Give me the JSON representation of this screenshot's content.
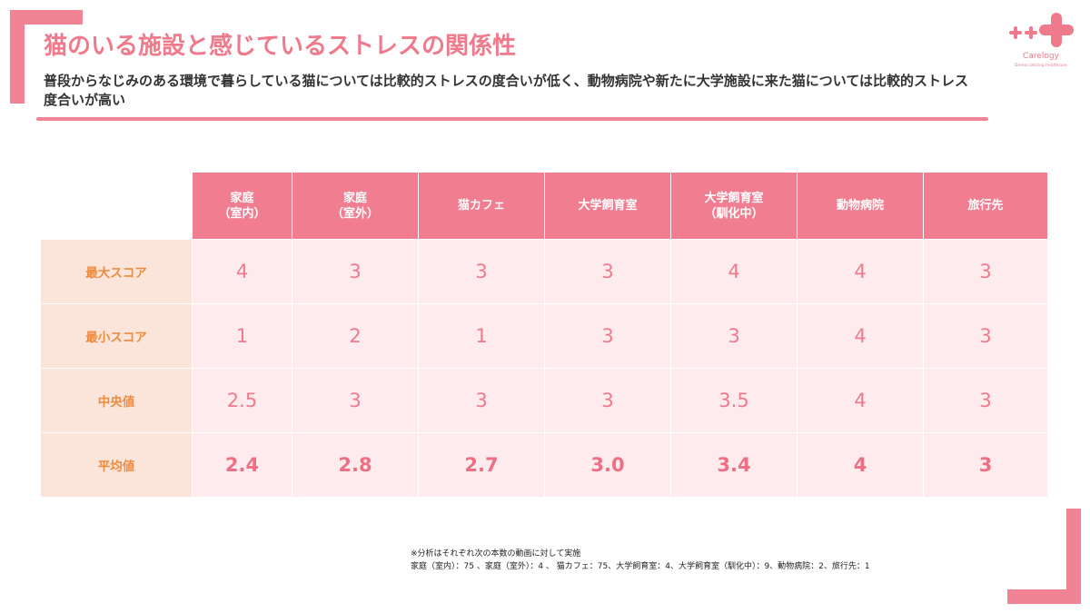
{
  "header": {
    "title": "猫のいる施設と感じているストレスの関係性",
    "subtitle": "普段からなじみのある環境で暮らしている猫については比較的ストレスの度合いが低く、動物病院や新たに大学施設に来た猫については比較的ストレス度合いが高い"
  },
  "logo": {
    "name": "Carelogy",
    "tagline": "Democratizing healthcare",
    "icon": "plus-cross-logo-icon",
    "color": "#ee7a8c"
  },
  "table": {
    "columns": [
      {
        "line1": "家庭",
        "line2": "（室内）"
      },
      {
        "line1": "家庭",
        "line2": "（室外）"
      },
      {
        "line1": "猫カフェ",
        "line2": ""
      },
      {
        "line1": "大学飼育室",
        "line2": ""
      },
      {
        "line1": "大学飼育室",
        "line2": "（馴化中）"
      },
      {
        "line1": "動物病院",
        "line2": ""
      },
      {
        "line1": "旅行先",
        "line2": ""
      }
    ],
    "rows": [
      {
        "label": "最大スコア",
        "values": [
          "4",
          "3",
          "3",
          "3",
          "4",
          "4",
          "3"
        ]
      },
      {
        "label": "最小スコア",
        "values": [
          "1",
          "2",
          "1",
          "3",
          "3",
          "4",
          "3"
        ]
      },
      {
        "label": "中央値",
        "values": [
          "2.5",
          "3",
          "3",
          "3",
          "3.5",
          "4",
          "3"
        ]
      },
      {
        "label": "平均値",
        "values": [
          "2.4",
          "2.8",
          "2.7",
          "3.0",
          "3.4",
          "4",
          "3"
        ]
      }
    ]
  },
  "footnote": {
    "line1": "※分析はそれぞれ次の本数の動画に対して実施",
    "line2": "家庭（室内）：75 、家庭（室外）：4 、 猫カフェ：75、大学飼育室：4、大学飼育室（馴化中）：9、動物病院：2、旅行先：1"
  },
  "colors": {
    "accent": "#f08394",
    "header_bg": "#f07d90",
    "row_label_bg": "#fbe4d9",
    "row_label_text": "#ee8a3c",
    "cell_bg": "#fdebee"
  }
}
